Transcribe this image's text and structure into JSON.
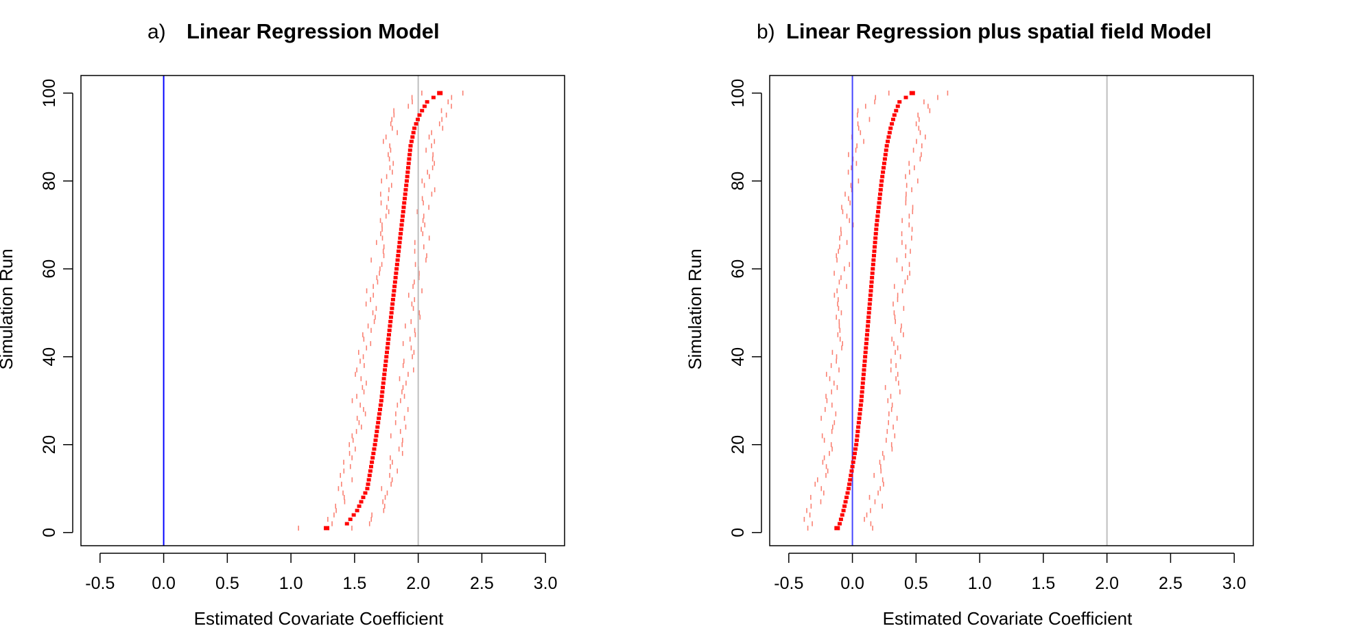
{
  "chart_data": [
    {
      "type": "scatter",
      "panel_letter": "a)",
      "title": "Linear Regression Model",
      "xlabel": "Estimated Covariate Coefficient",
      "ylabel": "Simulation Run",
      "xlim": [
        -0.65,
        3.15
      ],
      "ylim": [
        -3,
        104
      ],
      "xticks": [
        "-0.5",
        "0.0",
        "0.5",
        "1.0",
        "1.5",
        "2.0",
        "2.5",
        "3.0"
      ],
      "yticks": [
        "0",
        "20",
        "40",
        "60",
        "80",
        "100"
      ],
      "reference_lines": [
        {
          "x": 0.0,
          "color": "#0000ff"
        },
        {
          "x": 2.0,
          "color": "#bebebe"
        }
      ],
      "estimate_color": "#ff0000",
      "interval_color": "#fa8072",
      "estimates": {
        "runs": [
          1,
          2,
          5,
          10,
          20,
          30,
          40,
          50,
          60,
          70,
          80,
          88,
          92,
          95,
          98,
          100
        ],
        "values": [
          1.28,
          1.44,
          1.52,
          1.6,
          1.66,
          1.71,
          1.75,
          1.79,
          1.83,
          1.87,
          1.91,
          1.94,
          1.97,
          2.01,
          2.07,
          2.17
        ]
      },
      "interval_half_width": 0.17
    },
    {
      "type": "scatter",
      "panel_letter": "b)",
      "title": "Linear Regression plus spatial field Model",
      "xlabel": "Estimated Covariate Coefficient",
      "ylabel": "Simulation Run",
      "xlim": [
        -0.65,
        3.15
      ],
      "ylim": [
        -3,
        104
      ],
      "xticks": [
        "-0.5",
        "0.0",
        "0.5",
        "1.0",
        "1.5",
        "2.0",
        "2.5",
        "3.0"
      ],
      "yticks": [
        "0",
        "20",
        "40",
        "60",
        "80",
        "100"
      ],
      "reference_lines": [
        {
          "x": 0.0,
          "color": "#4444ff"
        },
        {
          "x": 2.0,
          "color": "#bebebe"
        }
      ],
      "estimate_color": "#ff0000",
      "interval_color": "#fa8072",
      "estimates": {
        "runs": [
          1,
          2,
          5,
          10,
          15,
          20,
          30,
          40,
          50,
          60,
          70,
          80,
          88,
          92,
          95,
          98,
          100
        ],
        "values": [
          -0.12,
          -0.1,
          -0.07,
          -0.03,
          0.0,
          0.03,
          0.07,
          0.1,
          0.13,
          0.16,
          0.19,
          0.23,
          0.27,
          0.3,
          0.33,
          0.37,
          0.47
        ]
      },
      "interval_half_width": 0.24
    }
  ]
}
